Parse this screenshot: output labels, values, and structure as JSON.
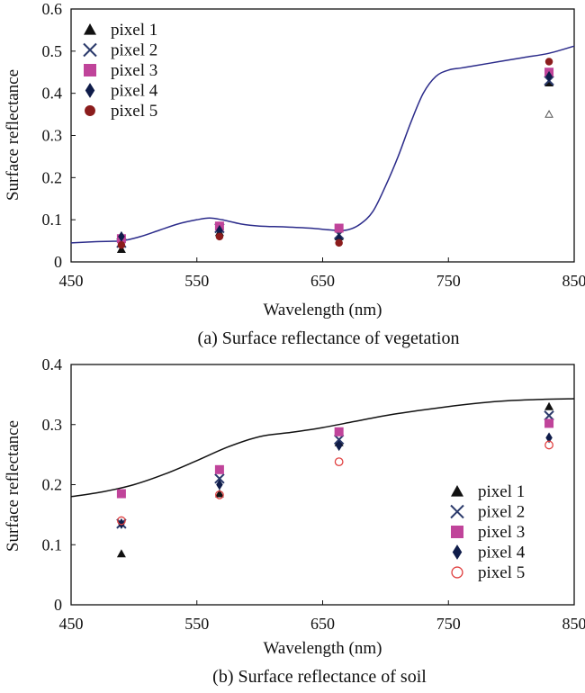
{
  "chart_data": [
    {
      "type": "scatter",
      "caption": "(a) Surface reflectance of vegetation",
      "xlabel": "Wavelength (nm)",
      "ylabel": "Surface reflectance",
      "xlim": [
        450,
        850
      ],
      "ylim": [
        0,
        0.6
      ],
      "x_ticks": [
        "450",
        "550",
        "650",
        "750",
        "850"
      ],
      "y_ticks": [
        "0",
        "0.1",
        "0.2",
        "0.3",
        "0.4",
        "0.5",
        "0.6"
      ],
      "legend_position": "top-left",
      "reference_curve": {
        "color": "#2b2b8a",
        "x": [
          450,
          470,
          490,
          505,
          520,
          535,
          550,
          560,
          570,
          585,
          600,
          620,
          640,
          660,
          670,
          680,
          690,
          700,
          710,
          720,
          730,
          740,
          750,
          760,
          770,
          790,
          810,
          830,
          850
        ],
        "y": [
          0.045,
          0.048,
          0.05,
          0.06,
          0.075,
          0.09,
          0.1,
          0.104,
          0.1,
          0.09,
          0.085,
          0.083,
          0.08,
          0.075,
          0.076,
          0.09,
          0.12,
          0.18,
          0.25,
          0.33,
          0.4,
          0.44,
          0.455,
          0.46,
          0.465,
          0.475,
          0.485,
          0.495,
          0.512
        ]
      },
      "series": [
        {
          "name": "pixel 1",
          "marker": "triangle",
          "color": "#111111",
          "x": [
            490,
            568,
            663,
            830
          ],
          "y": [
            0.03,
            0.07,
            0.06,
            0.425
          ]
        },
        {
          "name": "pixel 2",
          "marker": "cross",
          "color": "#2b3a6b",
          "x": [
            490,
            568,
            663,
            830
          ],
          "y": [
            0.045,
            0.08,
            0.065,
            0.43
          ]
        },
        {
          "name": "pixel 3",
          "marker": "square",
          "color": "#c0449a",
          "x": [
            490,
            568,
            663,
            830
          ],
          "y": [
            0.055,
            0.085,
            0.08,
            0.45
          ]
        },
        {
          "name": "pixel 4",
          "marker": "diamond",
          "color": "#0f1c4a",
          "x": [
            490,
            568,
            663,
            830
          ],
          "y": [
            0.06,
            0.075,
            0.055,
            0.44
          ]
        },
        {
          "name": "pixel 5",
          "marker": "circle",
          "color": "#8b1c1c",
          "x": [
            490,
            568,
            663,
            830
          ],
          "y": [
            0.04,
            0.06,
            0.045,
            0.475
          ]
        }
      ],
      "extra_point": {
        "x": 830,
        "y": 0.35,
        "marker": "open-triangle",
        "color": "#555555"
      }
    },
    {
      "type": "scatter",
      "caption": "(b) Surface reflectance of soil",
      "xlabel": "Wavelength (nm)",
      "ylabel": "Surface reflectance",
      "xlim": [
        450,
        850
      ],
      "ylim": [
        0,
        0.4
      ],
      "x_ticks": [
        "450",
        "550",
        "650",
        "750",
        "850"
      ],
      "y_ticks": [
        "0",
        "0.1",
        "0.2",
        "0.3",
        "0.4"
      ],
      "legend_position": "bottom-right",
      "reference_curve": {
        "color": "#111111",
        "x": [
          450,
          475,
          500,
          525,
          550,
          575,
          600,
          625,
          650,
          675,
          700,
          725,
          750,
          775,
          800,
          825,
          850
        ],
        "y": [
          0.18,
          0.188,
          0.2,
          0.218,
          0.24,
          0.263,
          0.28,
          0.287,
          0.295,
          0.305,
          0.315,
          0.323,
          0.33,
          0.336,
          0.34,
          0.342,
          0.343
        ]
      },
      "series": [
        {
          "name": "pixel 1",
          "marker": "triangle",
          "color": "#111111",
          "x": [
            490,
            568,
            663,
            830
          ],
          "y": [
            0.085,
            0.185,
            0.27,
            0.33
          ]
        },
        {
          "name": "pixel 2",
          "marker": "cross",
          "color": "#2b3a6b",
          "x": [
            490,
            568,
            663,
            830
          ],
          "y": [
            0.135,
            0.21,
            0.275,
            0.315
          ]
        },
        {
          "name": "pixel 3",
          "marker": "square",
          "color": "#c0449a",
          "x": [
            490,
            568,
            663,
            830
          ],
          "y": [
            0.185,
            0.225,
            0.288,
            0.302
          ]
        },
        {
          "name": "pixel 4",
          "marker": "diamond",
          "color": "#0f1c4a",
          "x": [
            490,
            568,
            663,
            830
          ],
          "y": [
            0.135,
            0.2,
            0.265,
            0.278
          ]
        },
        {
          "name": "pixel 5",
          "marker": "circle-open",
          "color": "#e04040",
          "x": [
            490,
            568,
            663,
            830
          ],
          "y": [
            0.14,
            0.183,
            0.238,
            0.266
          ]
        }
      ]
    }
  ]
}
